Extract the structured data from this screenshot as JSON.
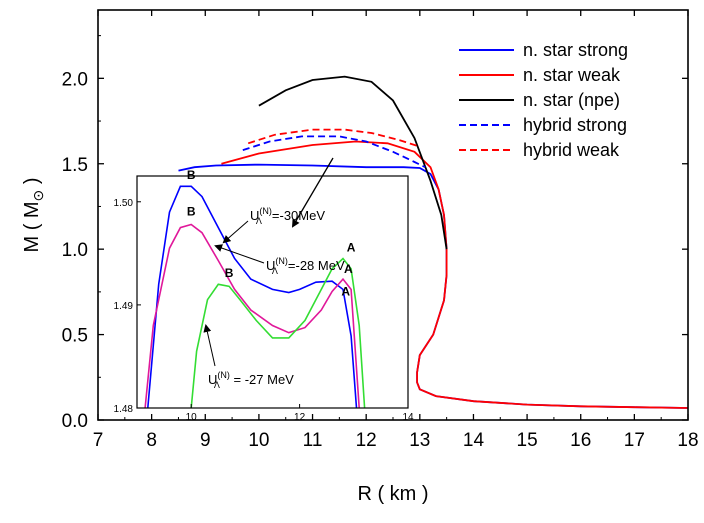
{
  "chart_data": [
    {
      "id": "main",
      "type": "line",
      "xlabel": "R ( km )",
      "ylabel": "M ( M",
      "ylabel_sub": "⊙",
      "ylabel_close": " )",
      "xlim": [
        7,
        18
      ],
      "ylim": [
        0,
        2.4
      ],
      "xticks": [
        7,
        8,
        9,
        10,
        11,
        12,
        13,
        14,
        15,
        16,
        17,
        18
      ],
      "yticks": [
        0.0,
        0.5,
        1.0,
        1.5,
        2.0
      ],
      "xtick_labels": [
        "7",
        "8",
        "9",
        "10",
        "11",
        "12",
        "13",
        "14",
        "15",
        "16",
        "17",
        "18"
      ],
      "ytick_labels": [
        "0.0",
        "0.5",
        "1.0",
        "1.5",
        "2.0"
      ],
      "legend_placement": "top-right",
      "series": [
        {
          "name": "n. star strong",
          "color": "#0000ff",
          "dash": "solid",
          "x": [
            8.5,
            8.8,
            9.2,
            10.0,
            11.0,
            12.0,
            12.7,
            13.0,
            13.2,
            13.35,
            13.45,
            13.5,
            13.5,
            13.45,
            13.35,
            13.25,
            13.0,
            12.95,
            12.95,
            13.0,
            13.3,
            14.0,
            15.0,
            16.0,
            17.0,
            18.0
          ],
          "y": [
            1.46,
            1.48,
            1.49,
            1.495,
            1.49,
            1.48,
            1.48,
            1.475,
            1.44,
            1.35,
            1.2,
            1.0,
            0.85,
            0.7,
            0.6,
            0.5,
            0.38,
            0.28,
            0.22,
            0.18,
            0.14,
            0.11,
            0.09,
            0.08,
            0.075,
            0.07
          ]
        },
        {
          "name": "n. star weak",
          "color": "#ff0000",
          "dash": "solid",
          "x": [
            9.3,
            10.0,
            11.0,
            11.8,
            12.4,
            12.9,
            13.2,
            13.35,
            13.45,
            13.5,
            13.5,
            13.45,
            13.35,
            13.25,
            13.0,
            12.95,
            12.95,
            13.0,
            13.3,
            14.0,
            15.0,
            16.0,
            17.0,
            18.0
          ],
          "y": [
            1.5,
            1.56,
            1.61,
            1.63,
            1.62,
            1.57,
            1.48,
            1.35,
            1.2,
            1.0,
            0.85,
            0.7,
            0.6,
            0.5,
            0.38,
            0.28,
            0.22,
            0.18,
            0.14,
            0.11,
            0.09,
            0.08,
            0.075,
            0.07
          ]
        },
        {
          "name": "n. star (npe)",
          "color": "#000000",
          "dash": "solid",
          "x": [
            10.0,
            10.5,
            11.0,
            11.6,
            12.1,
            12.5,
            12.9,
            13.2,
            13.4,
            13.5
          ],
          "y": [
            1.84,
            1.93,
            1.99,
            2.01,
            1.98,
            1.87,
            1.65,
            1.4,
            1.2,
            1.0
          ]
        },
        {
          "name": "hybrid strong",
          "color": "#0000ff",
          "dash": "dashed",
          "x": [
            9.7,
            10.2,
            10.8,
            11.5,
            12.0,
            12.5,
            12.9,
            13.1
          ],
          "y": [
            1.58,
            1.63,
            1.66,
            1.66,
            1.63,
            1.57,
            1.51,
            1.48
          ]
        },
        {
          "name": "hybrid weak",
          "color": "#ff0000",
          "dash": "dashed",
          "x": [
            9.8,
            10.3,
            11.0,
            11.6,
            12.1,
            12.6,
            13.0
          ],
          "y": [
            1.62,
            1.67,
            1.7,
            1.7,
            1.68,
            1.64,
            1.6
          ]
        }
      ]
    },
    {
      "id": "inset",
      "type": "line",
      "xlim": [
        9.0,
        14.0
      ],
      "ylim": [
        1.48,
        1.5025
      ],
      "xticks": [
        10,
        12,
        14
      ],
      "yticks": [
        1.48,
        1.49,
        1.5
      ],
      "xtick_labels": [
        "10",
        "12",
        "14"
      ],
      "ytick_labels": [
        "1.48",
        "1.49",
        "1.50"
      ],
      "series": [
        {
          "label": "U(N)Λ=-30MeV",
          "color": "#0000ff",
          "x": [
            9.2,
            9.4,
            9.6,
            9.8,
            10.0,
            10.2,
            10.5,
            10.8,
            11.1,
            11.5,
            11.8,
            12.0,
            12.3,
            12.6,
            12.8,
            12.95,
            13.05
          ],
          "y": [
            1.48,
            1.492,
            1.499,
            1.5015,
            1.5015,
            1.5005,
            1.4975,
            1.4945,
            1.4925,
            1.4915,
            1.4912,
            1.4915,
            1.4922,
            1.4923,
            1.4915,
            1.487,
            1.48
          ]
        },
        {
          "label": "U(N)Λ=-28 MeV",
          "color": "#e0189a",
          "x": [
            9.15,
            9.3,
            9.6,
            9.8,
            10.0,
            10.2,
            10.5,
            10.8,
            11.1,
            11.5,
            11.8,
            12.1,
            12.4,
            12.6,
            12.8,
            12.95,
            13.1
          ],
          "y": [
            1.48,
            1.488,
            1.4955,
            1.4975,
            1.4978,
            1.497,
            1.4943,
            1.4915,
            1.4895,
            1.488,
            1.4873,
            1.4878,
            1.4895,
            1.4913,
            1.4925,
            1.4915,
            1.48
          ]
        },
        {
          "label": "U(N)Λ = -27 MeV",
          "color": "#33dd33",
          "x": [
            10.0,
            10.1,
            10.3,
            10.5,
            10.7,
            10.9,
            11.2,
            11.5,
            11.8,
            12.1,
            12.4,
            12.6,
            12.8,
            12.95,
            13.1,
            13.2
          ],
          "y": [
            1.48,
            1.4855,
            1.4905,
            1.492,
            1.4918,
            1.4905,
            1.4885,
            1.4868,
            1.4868,
            1.4885,
            1.4915,
            1.4935,
            1.4945,
            1.4935,
            1.488,
            1.48
          ]
        }
      ],
      "point_labels": [
        {
          "text": "B",
          "x": 10.0,
          "y": 1.5018
        },
        {
          "text": "B",
          "x": 10.0,
          "y": 1.4983
        },
        {
          "text": "B",
          "x": 10.7,
          "y": 1.4923
        },
        {
          "text": "A",
          "x": 12.95,
          "y": 1.4948
        },
        {
          "text": "A",
          "x": 12.9,
          "y": 1.4927
        },
        {
          "text": "A",
          "x": 12.85,
          "y": 1.4905
        }
      ],
      "annotations": [
        {
          "U": "U",
          "sup": "(N)",
          "sub": "Λ",
          "value": "=-30MeV"
        },
        {
          "U": "U",
          "sup": "(N)",
          "sub": "Λ",
          "value": "=-28 MeV"
        },
        {
          "U": "U",
          "sup": "(N)",
          "sub": "Λ",
          "value": " = -27 MeV"
        }
      ]
    }
  ]
}
